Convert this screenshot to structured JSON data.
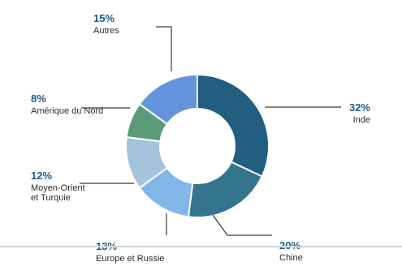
{
  "chart_data": {
    "type": "pie",
    "donut": true,
    "title": "",
    "unit": "%",
    "slices": [
      {
        "label": "Inde",
        "value": 32,
        "value_label": "32%",
        "color": "#215e80"
      },
      {
        "label": "Chine",
        "value": 20,
        "value_label": "20%",
        "color": "#34748d"
      },
      {
        "label": "Europe et Russie",
        "value": 13,
        "value_label": "13%",
        "color": "#82b6e8"
      },
      {
        "label": "Moyen-Orient et Turquie",
        "label_lines": [
          "Moyen-Orient",
          "et Turquie"
        ],
        "value": 12,
        "value_label": "12%",
        "color": "#a4c4dc"
      },
      {
        "label": "Amérique du Nord",
        "value": 8,
        "value_label": "8%",
        "color": "#5b9b7a"
      },
      {
        "label": "Autres",
        "value": 15,
        "value_label": "15%",
        "color": "#6594dc"
      }
    ]
  }
}
